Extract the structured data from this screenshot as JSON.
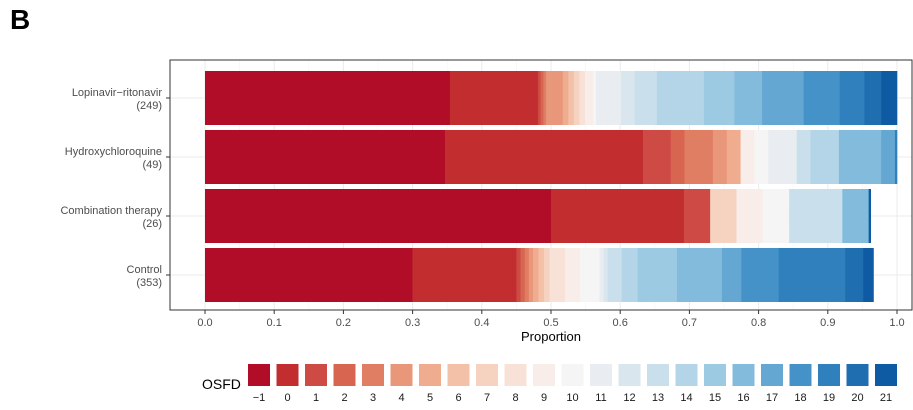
{
  "panel_label": "B",
  "chart_data": {
    "type": "bar",
    "orientation": "horizontal",
    "stacked": true,
    "xlabel": "Proportion",
    "xlim": [
      0,
      1
    ],
    "xticks": [
      "0.0",
      "0.1",
      "0.2",
      "0.3",
      "0.4",
      "0.5",
      "0.6",
      "0.7",
      "0.8",
      "0.9",
      "1.0"
    ],
    "xtick_values": [
      0,
      0.1,
      0.2,
      0.3,
      0.4,
      0.5,
      0.6,
      0.7,
      0.8,
      0.9,
      1.0
    ],
    "grid": true,
    "categories": [
      {
        "name": "Lopinavir−ritonavir",
        "n": "(249)"
      },
      {
        "name": "Hydroxychloroquine",
        "n": "(49)"
      },
      {
        "name": "Combination therapy",
        "n": "(26)"
      },
      {
        "name": "Control",
        "n": "(353)"
      }
    ],
    "legend": {
      "title": "OSFD",
      "placement": "bottom",
      "levels": [
        "−1",
        "0",
        "1",
        "2",
        "3",
        "4",
        "5",
        "6",
        "7",
        "8",
        "9",
        "10",
        "11",
        "12",
        "13",
        "14",
        "15",
        "16",
        "17",
        "18",
        "19",
        "20",
        "21"
      ],
      "colors": [
        "#b10d29",
        "#c22d30",
        "#cd4a45",
        "#d7654f",
        "#e07e64",
        "#e9977a",
        "#efac8f",
        "#f3c0a8",
        "#f6d2c0",
        "#f8e1d6",
        "#f8ede8",
        "#f5f5f5",
        "#e9edf1",
        "#d9e6ee",
        "#c9e0ec",
        "#b4d5e8",
        "#9dcae3",
        "#83bbdc",
        "#64a7d3",
        "#4592c8",
        "#2f80bd",
        "#1f6eb0",
        "#0e5aa3"
      ]
    },
    "series_values": [
      [
        0.354,
        0.127,
        0.004,
        0.004,
        0.004,
        0.024,
        0.008,
        0.008,
        0.008,
        0.008,
        0.012,
        0.004,
        0.036,
        0.02,
        0.032,
        0.068,
        0.044,
        0.04,
        0.06,
        0.052,
        0.036,
        0.024,
        0.023
      ],
      [
        0.347,
        0.286,
        0.04,
        0.02,
        0.041,
        0.02,
        0.02,
        0.0,
        0.0,
        0.0,
        0.02,
        0.02,
        0.041,
        0.0,
        0.02,
        0.041,
        0.0,
        0.061,
        0.02,
        0.0,
        0.02,
        0.0,
        0.023
      ],
      [
        0.5,
        0.192,
        0.038,
        0.0,
        0.0,
        0.0,
        0.0,
        0.0,
        0.038,
        0.0,
        0.038,
        0.038,
        0.0,
        0.0,
        0.077,
        0.0,
        0.0,
        0.038,
        0.0,
        0.0,
        0.0,
        0.0,
        0.003
      ],
      [
        0.3,
        0.15,
        0.006,
        0.006,
        0.006,
        0.006,
        0.008,
        0.008,
        0.008,
        0.022,
        0.022,
        0.028,
        0.006,
        0.006,
        0.02,
        0.023,
        0.057,
        0.065,
        0.028,
        0.054,
        0.096,
        0.026,
        0.015
      ]
    ]
  }
}
